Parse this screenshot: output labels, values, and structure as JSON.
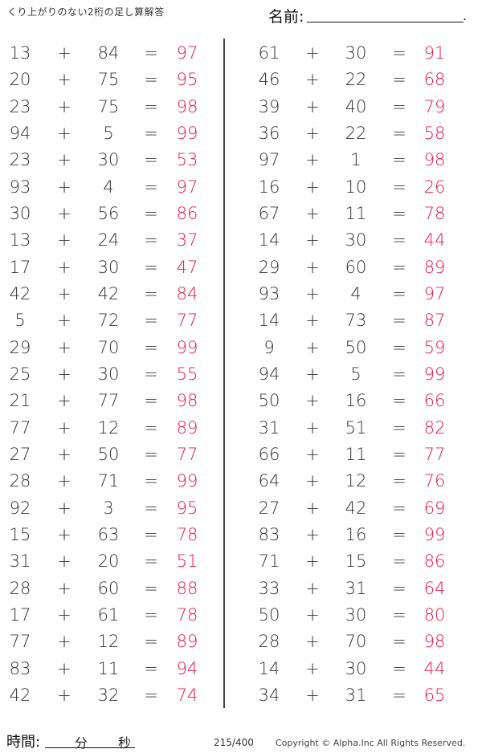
{
  "header": {
    "title": "くり上がりのない2桁の足し算解答",
    "name_label": "名前:",
    "name_end": "."
  },
  "colors": {
    "answer": "#e8184a",
    "text": "#333333"
  },
  "symbols": {
    "plus": "+",
    "equals": "="
  },
  "columns": [
    {
      "rows": [
        [
          13,
          84,
          97
        ],
        [
          20,
          75,
          95
        ],
        [
          23,
          75,
          98
        ],
        [
          94,
          5,
          99
        ],
        [
          23,
          30,
          53
        ],
        [
          93,
          4,
          97
        ],
        [
          30,
          56,
          86
        ],
        [
          13,
          24,
          37
        ],
        [
          17,
          30,
          47
        ],
        [
          42,
          42,
          84
        ],
        [
          5,
          72,
          77
        ],
        [
          29,
          70,
          99
        ],
        [
          25,
          30,
          55
        ],
        [
          21,
          77,
          98
        ],
        [
          77,
          12,
          89
        ],
        [
          27,
          50,
          77
        ],
        [
          28,
          71,
          99
        ],
        [
          92,
          3,
          95
        ],
        [
          15,
          63,
          78
        ],
        [
          31,
          20,
          51
        ],
        [
          28,
          60,
          88
        ],
        [
          17,
          61,
          78
        ],
        [
          77,
          12,
          89
        ],
        [
          83,
          11,
          94
        ],
        [
          42,
          32,
          74
        ]
      ]
    },
    {
      "rows": [
        [
          61,
          30,
          91
        ],
        [
          46,
          22,
          68
        ],
        [
          39,
          40,
          79
        ],
        [
          36,
          22,
          58
        ],
        [
          97,
          1,
          98
        ],
        [
          16,
          10,
          26
        ],
        [
          67,
          11,
          78
        ],
        [
          14,
          30,
          44
        ],
        [
          29,
          60,
          89
        ],
        [
          93,
          4,
          97
        ],
        [
          14,
          73,
          87
        ],
        [
          9,
          50,
          59
        ],
        [
          94,
          5,
          99
        ],
        [
          50,
          16,
          66
        ],
        [
          31,
          51,
          82
        ],
        [
          66,
          11,
          77
        ],
        [
          64,
          12,
          76
        ],
        [
          27,
          42,
          69
        ],
        [
          83,
          16,
          99
        ],
        [
          71,
          15,
          86
        ],
        [
          33,
          31,
          64
        ],
        [
          50,
          30,
          80
        ],
        [
          28,
          70,
          98
        ],
        [
          14,
          30,
          44
        ],
        [
          34,
          31,
          65
        ]
      ]
    }
  ],
  "footer": {
    "time_label": "時間:",
    "minutes": "分",
    "seconds": "秒",
    "page": "215/400",
    "copyright": "Copyright ©  Alpha.Inc All Rights Reserved."
  }
}
